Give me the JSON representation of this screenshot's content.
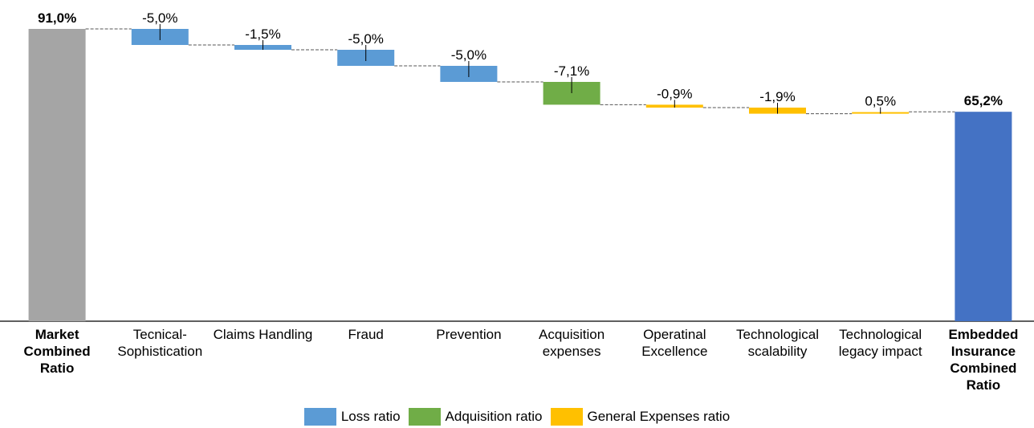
{
  "chart_data": {
    "type": "waterfall",
    "categories": [
      "Market Combined Ratio",
      "Tecnical-Sophistication",
      "Claims Handling",
      "Fraud",
      "Prevention",
      "Acquisition expenses",
      "Operatinal Excellence",
      "Technological scalability",
      "Technological legacy impact",
      "Embedded Insurance Combined Ratio"
    ],
    "values": [
      91.0,
      -5.0,
      -1.5,
      -5.0,
      -5.0,
      -7.1,
      -0.9,
      -1.9,
      0.5,
      65.2
    ],
    "value_labels": [
      "91,0%",
      "-5,0%",
      "-1,5%",
      "-5,0%",
      "-5,0%",
      "-7,1%",
      "-0,9%",
      "-1,9%",
      "0,5%",
      "65,2%"
    ],
    "totals": [
      true,
      false,
      false,
      false,
      false,
      false,
      false,
      false,
      false,
      true
    ],
    "colors": [
      "#a5a5a5",
      "#5b9bd5",
      "#5b9bd5",
      "#5b9bd5",
      "#5b9bd5",
      "#70ad47",
      "#ffc000",
      "#ffc000",
      "#ffc000",
      "#4472c4"
    ],
    "legend": [
      {
        "name": "Loss ratio",
        "color": "#5b9bd5"
      },
      {
        "name": "Adquisition ratio",
        "color": "#70ad47"
      },
      {
        "name": "General Expenses ratio",
        "color": "#ffc000"
      }
    ],
    "ylim": [
      0,
      91
    ]
  }
}
